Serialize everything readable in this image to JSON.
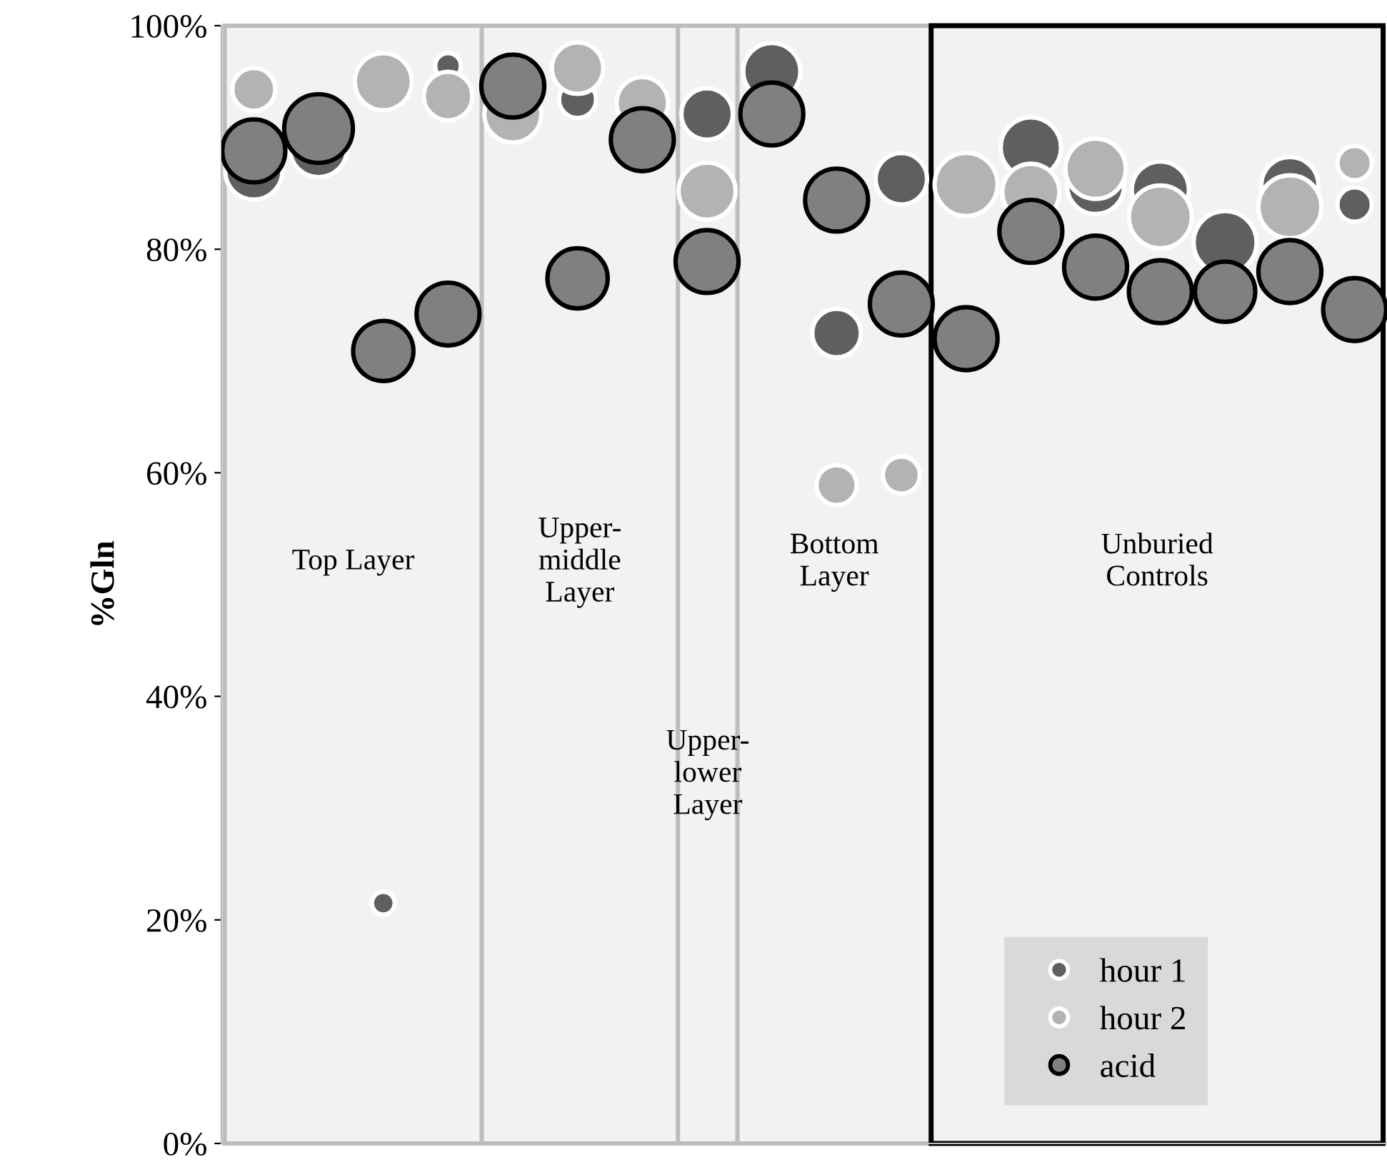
{
  "chart_data": {
    "type": "bubble",
    "ylabel": "%Gln",
    "categories": [
      null,
      null,
      null,
      null,
      null,
      null,
      null,
      null,
      null,
      null,
      null,
      null,
      null,
      null,
      null,
      null,
      null,
      null
    ],
    "ylim": [
      0,
      100
    ],
    "yticks": [
      {
        "value": 0,
        "label": "0%"
      },
      {
        "value": 20,
        "label": "20%"
      },
      {
        "value": 40,
        "label": "40%"
      },
      {
        "value": 60,
        "label": "60%"
      },
      {
        "value": 80,
        "label": "80%"
      },
      {
        "value": 100,
        "label": "100%"
      }
    ],
    "series": [
      {
        "name": "hour 1",
        "color": "#5f5f5f",
        "values": [
          87,
          89,
          21.5,
          96.4,
          null,
          93.4,
          null,
          92.1,
          95.9,
          72.5,
          86.3,
          null,
          89.1,
          85.7,
          85.3,
          80.6,
          85.7,
          84.0
        ],
        "sizes": [
          0.69,
          0.69,
          0.11,
          0.14,
          null,
          0.29,
          null,
          0.56,
          0.69,
          0.5,
          0.56,
          null,
          0.77,
          0.69,
          0.69,
          0.84,
          0.69,
          0.25
        ]
      },
      {
        "name": "hour 2",
        "color": "#b3b3b3",
        "values": [
          94.3,
          null,
          95.0,
          93.7,
          92.1,
          96.2,
          93.1,
          85.2,
          null,
          58.9,
          59.8,
          85.8,
          85.1,
          87.2,
          82.9,
          null,
          83.8,
          87.7
        ],
        "sizes": [
          0.39,
          null,
          0.69,
          0.5,
          0.69,
          0.56,
          0.56,
          0.69,
          null,
          0.34,
          0.29,
          0.84,
          0.69,
          0.77,
          0.84,
          null,
          0.84,
          0.25
        ]
      },
      {
        "name": "acid",
        "color": "#808080",
        "values": [
          88.8,
          90.8,
          70.9,
          74.2,
          94.6,
          77.4,
          89.8,
          78.9,
          92.1,
          84.4,
          75.1,
          72.0,
          81.6,
          78.4,
          76.2,
          76.2,
          78.0,
          74.6
        ],
        "sizes": [
          0.84,
          1,
          0.77,
          0.84,
          0.84,
          0.77,
          0.84,
          0.84,
          0.84,
          0.84,
          0.84,
          0.84,
          0.84,
          0.84,
          0.84,
          0.77,
          0.84,
          0.84
        ]
      }
    ],
    "annotations": [
      "Top Layer",
      "Upper-\nmiddle\nLayer",
      "Upper-\nlower\nLayer",
      "Bottom\nLayer",
      "Unburied\nControls"
    ],
    "legend": "bottom right",
    "grid": false
  }
}
